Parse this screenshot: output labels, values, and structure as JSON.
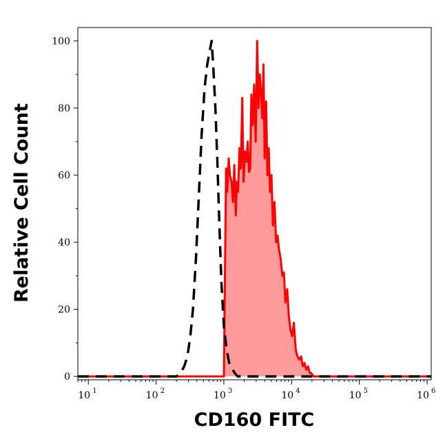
{
  "chart_data": {
    "type": "area",
    "xlabel": "CD160 FITC",
    "ylabel": "Relative Cell Count",
    "x_scale": "log",
    "xlim": [
      7,
      1150000
    ],
    "ylim": [
      -1,
      104
    ],
    "y_ticks": [
      0,
      20,
      40,
      60,
      80,
      100
    ],
    "x_ticks": [
      {
        "value": 10,
        "base": "10",
        "exp": "1"
      },
      {
        "value": 100,
        "base": "10",
        "exp": "2"
      },
      {
        "value": 1000,
        "base": "10",
        "exp": "3"
      },
      {
        "value": 10000,
        "base": "10",
        "exp": "4"
      },
      {
        "value": 100000,
        "base": "10",
        "exp": "5"
      },
      {
        "value": 1000000,
        "base": "10",
        "exp": "6"
      }
    ],
    "grid": false,
    "colors": {
      "stained_line": "#ff0000",
      "stained_fill": "#ff9b9b",
      "control_line": "#000000"
    },
    "series": [
      {
        "style": "dashed-line",
        "x": [
          7,
          200,
          230,
          260,
          290,
          320,
          350,
          390,
          430,
          470,
          520,
          570,
          620,
          660,
          700,
          750,
          800,
          860,
          920,
          1000,
          1100,
          1200,
          1350,
          1450,
          1600,
          2000,
          5000,
          1150000
        ],
        "y": [
          0,
          0,
          1,
          3,
          6,
          12,
          20,
          36,
          55,
          72,
          86,
          93,
          97,
          100,
          92,
          80,
          65,
          45,
          28,
          15,
          8,
          4,
          2,
          1,
          0,
          0,
          0,
          0
        ]
      },
      {
        "style": "filled-area",
        "x": [
          7,
          1000,
          1080,
          1120,
          1180,
          1230,
          1300,
          1360,
          1430,
          1500,
          1560,
          1620,
          1700,
          1780,
          1870,
          1950,
          2050,
          2150,
          2250,
          2350,
          2450,
          2550,
          2680,
          2800,
          2950,
          3100,
          3250,
          3400,
          3550,
          3700,
          3850,
          4000,
          4200,
          4400,
          4600,
          4800,
          5050,
          5300,
          5600,
          5900,
          6200,
          6500,
          6900,
          7300,
          7700,
          8100,
          8600,
          9100,
          9600,
          10200,
          10800,
          11500,
          12200,
          13000,
          13800,
          14600,
          15500,
          16500,
          17500,
          18500,
          19500,
          21000,
          22500,
          24000,
          26000,
          28000,
          1150000
        ],
        "y": [
          0,
          0,
          62,
          55,
          65,
          60,
          58,
          52,
          63,
          48,
          58,
          55,
          68,
          62,
          83,
          58,
          67,
          64,
          70,
          61,
          62,
          84,
          75,
          87,
          70,
          100,
          80,
          90,
          84,
          77,
          93,
          65,
          82,
          60,
          68,
          55,
          60,
          45,
          52,
          40,
          42,
          38,
          35,
          30,
          31,
          22,
          26,
          18,
          14,
          12,
          16,
          8,
          6,
          5,
          6,
          3,
          4,
          2,
          3,
          1,
          1,
          0,
          0,
          0,
          0,
          0,
          0
        ]
      }
    ]
  }
}
